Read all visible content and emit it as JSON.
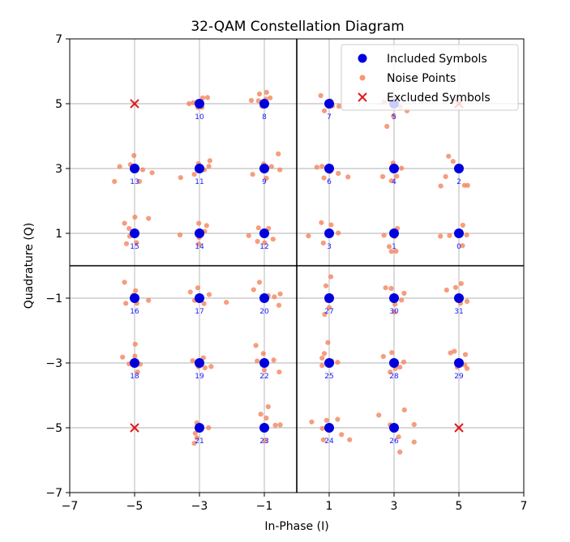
{
  "chart_data": {
    "type": "scatter",
    "title": "32-QAM Constellation Diagram",
    "xlabel": "In-Phase (I)",
    "ylabel": "Quadrature (Q)",
    "xlim": [
      -7,
      7
    ],
    "ylim": [
      -7,
      7
    ],
    "xticks": [
      -7,
      -5,
      -3,
      -1,
      1,
      3,
      5,
      7
    ],
    "yticks": [
      -7,
      -5,
      -3,
      -1,
      1,
      3,
      5,
      7
    ],
    "xtick_labels": [
      "−7",
      "−5",
      "−3",
      "−1",
      "1",
      "3",
      "5",
      "7"
    ],
    "ytick_labels": [
      "−7",
      "−5",
      "−3",
      "−1",
      "1",
      "3",
      "5",
      "7"
    ],
    "grid": true,
    "legend_position": "top-right",
    "colors": {
      "included": "#0000dd",
      "noise": "#f4845c",
      "excluded": "#e31a1c",
      "label": "#1a1aff"
    },
    "series": [
      {
        "name": "Included Symbols",
        "marker": "circle",
        "points": [
          {
            "label": "0",
            "x": 5,
            "y": 1
          },
          {
            "label": "1",
            "x": 3,
            "y": 1
          },
          {
            "label": "2",
            "x": 5,
            "y": 3
          },
          {
            "label": "3",
            "x": 1,
            "y": 1
          },
          {
            "label": "4",
            "x": 3,
            "y": 3
          },
          {
            "label": "5",
            "x": 3,
            "y": 5
          },
          {
            "label": "6",
            "x": 1,
            "y": 3
          },
          {
            "label": "7",
            "x": 1,
            "y": 5
          },
          {
            "label": "8",
            "x": -1,
            "y": 5
          },
          {
            "label": "9",
            "x": -1,
            "y": 3
          },
          {
            "label": "10",
            "x": -3,
            "y": 5
          },
          {
            "label": "11",
            "x": -3,
            "y": 3
          },
          {
            "label": "12",
            "x": -1,
            "y": 1
          },
          {
            "label": "13",
            "x": -5,
            "y": 3
          },
          {
            "label": "14",
            "x": -3,
            "y": 1
          },
          {
            "label": "15",
            "x": -5,
            "y": 1
          },
          {
            "label": "16",
            "x": -5,
            "y": -1
          },
          {
            "label": "17",
            "x": -3,
            "y": -1
          },
          {
            "label": "18",
            "x": -5,
            "y": -3
          },
          {
            "label": "19",
            "x": -3,
            "y": -3
          },
          {
            "label": "20",
            "x": -1,
            "y": -1
          },
          {
            "label": "21",
            "x": -3,
            "y": -5
          },
          {
            "label": "22",
            "x": -1,
            "y": -3
          },
          {
            "label": "23",
            "x": -1,
            "y": -5
          },
          {
            "label": "24",
            "x": 1,
            "y": -5
          },
          {
            "label": "25",
            "x": 1,
            "y": -3
          },
          {
            "label": "26",
            "x": 3,
            "y": -5
          },
          {
            "label": "27",
            "x": 1,
            "y": -1
          },
          {
            "label": "28",
            "x": 3,
            "y": -3
          },
          {
            "label": "29",
            "x": 5,
            "y": -3
          },
          {
            "label": "30",
            "x": 3,
            "y": -1
          },
          {
            "label": "31",
            "x": 5,
            "y": -1
          }
        ]
      },
      {
        "name": "Noise Points",
        "marker": "small-circle",
        "points": [
          [
            -3.32,
            5.0
          ],
          [
            -3.06,
            5.06
          ],
          [
            -2.9,
            5.18
          ],
          [
            -2.75,
            5.19
          ],
          [
            -2.92,
            4.89
          ],
          [
            -3.05,
            4.88
          ],
          [
            -3.19,
            5.03
          ],
          [
            -1.4,
            5.1
          ],
          [
            -1.15,
            5.3
          ],
          [
            -0.95,
            5.14
          ],
          [
            -0.82,
            5.18
          ],
          [
            -1.07,
            4.92
          ],
          [
            -0.93,
            5.35
          ],
          [
            -1.18,
            5.09
          ],
          [
            0.74,
            5.25
          ],
          [
            0.85,
            4.78
          ],
          [
            0.96,
            5.03
          ],
          [
            1.1,
            4.93
          ],
          [
            1.3,
            4.92
          ],
          [
            1.04,
            5.09
          ],
          [
            2.98,
            4.62
          ],
          [
            2.78,
            4.3
          ],
          [
            2.69,
            5.05
          ],
          [
            3.2,
            4.9
          ],
          [
            3.4,
            4.78
          ],
          [
            2.95,
            5.2
          ],
          [
            -5.02,
            3.4
          ],
          [
            -5.13,
            3.12
          ],
          [
            -5.46,
            3.06
          ],
          [
            -5.62,
            2.6
          ],
          [
            -4.75,
            2.96
          ],
          [
            -4.46,
            2.87
          ],
          [
            -4.85,
            2.6
          ],
          [
            -3.58,
            2.72
          ],
          [
            -3.03,
            3.15
          ],
          [
            -2.68,
            3.24
          ],
          [
            -2.71,
            3.07
          ],
          [
            -2.85,
            2.96
          ],
          [
            -3.16,
            2.82
          ],
          [
            -1.36,
            2.82
          ],
          [
            -1.02,
            3.14
          ],
          [
            -0.78,
            3.06
          ],
          [
            -0.52,
            2.96
          ],
          [
            -0.57,
            3.45
          ],
          [
            -0.94,
            2.7
          ],
          [
            0.62,
            3.04
          ],
          [
            0.78,
            3.07
          ],
          [
            1.28,
            2.85
          ],
          [
            1.58,
            2.74
          ],
          [
            0.84,
            2.71
          ],
          [
            1.02,
            2.9
          ],
          [
            2.65,
            2.75
          ],
          [
            2.97,
            3.17
          ],
          [
            3.23,
            3.01
          ],
          [
            3.08,
            2.76
          ],
          [
            2.92,
            2.62
          ],
          [
            4.44,
            2.46
          ],
          [
            4.59,
            2.75
          ],
          [
            4.82,
            3.22
          ],
          [
            4.68,
            3.38
          ],
          [
            5.17,
            2.48
          ],
          [
            5.27,
            2.48
          ],
          [
            -5.31,
            1.31
          ],
          [
            -5.15,
            0.91
          ],
          [
            -4.99,
            1.5
          ],
          [
            -4.57,
            1.46
          ],
          [
            -4.94,
            0.71
          ],
          [
            -5.25,
            0.68
          ],
          [
            -5.17,
            1.15
          ],
          [
            -3.6,
            0.95
          ],
          [
            -2.84,
            1.06
          ],
          [
            -3.01,
            0.87
          ],
          [
            -3.02,
            0.67
          ],
          [
            -2.78,
            1.24
          ],
          [
            -3.02,
            1.31
          ],
          [
            -1.48,
            0.93
          ],
          [
            -1.18,
            1.17
          ],
          [
            -0.87,
            1.15
          ],
          [
            -1.21,
            0.75
          ],
          [
            -0.99,
            0.71
          ],
          [
            -0.73,
            0.82
          ],
          [
            0.36,
            0.92
          ],
          [
            0.76,
            1.33
          ],
          [
            0.82,
            0.7
          ],
          [
            1.04,
            0.97
          ],
          [
            1.28,
            1.01
          ],
          [
            1.06,
            1.26
          ],
          [
            2.69,
            0.94
          ],
          [
            2.85,
            0.59
          ],
          [
            2.92,
            0.44
          ],
          [
            3.02,
            0.9
          ],
          [
            3.1,
            1.15
          ],
          [
            3.06,
            0.45
          ],
          [
            4.43,
            0.91
          ],
          [
            4.71,
            0.93
          ],
          [
            5.12,
            1.25
          ],
          [
            5.24,
            0.95
          ],
          [
            5.11,
            0.62
          ],
          [
            -5.31,
            -0.51
          ],
          [
            -5.04,
            -0.91
          ],
          [
            -4.93,
            -1.16
          ],
          [
            -4.57,
            -1.07
          ],
          [
            -5.27,
            -1.16
          ],
          [
            -4.97,
            -0.77
          ],
          [
            -3.28,
            -0.81
          ],
          [
            -2.7,
            -0.89
          ],
          [
            -2.86,
            -1.17
          ],
          [
            -3.15,
            -1.07
          ],
          [
            -3.05,
            -0.68
          ],
          [
            -2.17,
            -1.13
          ],
          [
            -1.33,
            -0.74
          ],
          [
            -0.88,
            -0.92
          ],
          [
            -0.69,
            -0.96
          ],
          [
            -0.55,
            -1.22
          ],
          [
            -0.51,
            -0.87
          ],
          [
            -1.15,
            -0.51
          ],
          [
            0.9,
            -0.62
          ],
          [
            1.04,
            -0.93
          ],
          [
            1.0,
            -1.29
          ],
          [
            0.86,
            -1.5
          ],
          [
            1.05,
            -0.34
          ],
          [
            0.94,
            -1.07
          ],
          [
            2.91,
            -0.7
          ],
          [
            3.23,
            -1.06
          ],
          [
            3.03,
            -1.19
          ],
          [
            2.74,
            -0.68
          ],
          [
            3.01,
            -1.43
          ],
          [
            3.31,
            -0.85
          ],
          [
            4.62,
            -0.75
          ],
          [
            4.9,
            -0.67
          ],
          [
            5.07,
            -0.55
          ],
          [
            5.25,
            -1.1
          ],
          [
            5.05,
            -1.16
          ],
          [
            -5.37,
            -2.82
          ],
          [
            -5.17,
            -3.03
          ],
          [
            -4.98,
            -2.42
          ],
          [
            -4.99,
            -2.79
          ],
          [
            -4.83,
            -3.04
          ],
          [
            -4.91,
            -3.28
          ],
          [
            -3.21,
            -2.93
          ],
          [
            -2.95,
            -3.0
          ],
          [
            -2.88,
            -2.84
          ],
          [
            -2.64,
            -3.11
          ],
          [
            -2.83,
            -3.15
          ],
          [
            -3.03,
            -3.12
          ],
          [
            -1.26,
            -2.46
          ],
          [
            -1.03,
            -2.71
          ],
          [
            -1.0,
            -3.22
          ],
          [
            -0.71,
            -2.91
          ],
          [
            -0.54,
            -3.28
          ],
          [
            -1.22,
            -2.94
          ],
          [
            0.78,
            -2.85
          ],
          [
            0.85,
            -2.71
          ],
          [
            1.08,
            -2.94
          ],
          [
            1.26,
            -2.98
          ],
          [
            0.96,
            -2.37
          ],
          [
            0.78,
            -3.08
          ],
          [
            2.67,
            -2.8
          ],
          [
            2.93,
            -2.68
          ],
          [
            3.04,
            -3.17
          ],
          [
            2.88,
            -3.28
          ],
          [
            3.18,
            -3.13
          ],
          [
            3.3,
            -2.97
          ],
          [
            4.74,
            -2.69
          ],
          [
            4.86,
            -2.64
          ],
          [
            4.95,
            -3.13
          ],
          [
            5.18,
            -3.06
          ],
          [
            5.25,
            -3.17
          ],
          [
            5.2,
            -2.74
          ],
          [
            -3.13,
            -5.17
          ],
          [
            -3.08,
            -4.85
          ],
          [
            -2.72,
            -5.0
          ],
          [
            -2.93,
            -4.97
          ],
          [
            -3.16,
            -5.48
          ],
          [
            -3.08,
            -5.31
          ],
          [
            -1.11,
            -4.58
          ],
          [
            -0.98,
            -5.4
          ],
          [
            -0.88,
            -4.35
          ],
          [
            -0.94,
            -4.7
          ],
          [
            -0.66,
            -4.92
          ],
          [
            -0.51,
            -4.91
          ],
          [
            0.46,
            -4.82
          ],
          [
            0.79,
            -5.02
          ],
          [
            0.92,
            -4.77
          ],
          [
            1.26,
            -4.74
          ],
          [
            1.38,
            -5.21
          ],
          [
            1.63,
            -5.37
          ],
          [
            0.82,
            -5.37
          ],
          [
            2.53,
            -4.61
          ],
          [
            2.88,
            -4.91
          ],
          [
            3.14,
            -5.28
          ],
          [
            3.18,
            -5.75
          ],
          [
            3.32,
            -4.45
          ],
          [
            3.62,
            -5.44
          ],
          [
            3.62,
            -4.9
          ]
        ]
      },
      {
        "name": "Excluded Symbols",
        "marker": "x",
        "points": [
          [
            -5,
            5
          ],
          [
            5,
            5
          ],
          [
            -5,
            -5
          ],
          [
            5,
            -5
          ]
        ]
      }
    ]
  }
}
